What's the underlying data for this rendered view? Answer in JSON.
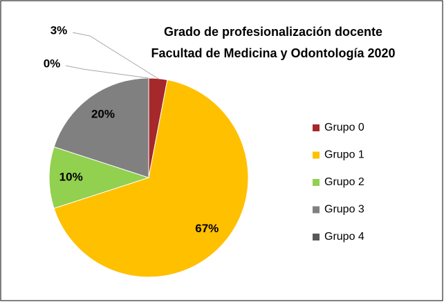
{
  "chart_data": {
    "type": "pie",
    "title": [
      "Grado de profesionalización docente",
      "Facultad de Medicina y Odontología  2020"
    ],
    "categories": [
      "Grupo 0",
      "Grupo 1",
      "Grupo 2",
      "Grupo 3",
      "Grupo 4"
    ],
    "values": [
      3,
      67,
      10,
      20,
      0
    ],
    "value_labels": [
      "3%",
      "67%",
      "10%",
      "20%",
      "0%"
    ],
    "colors": [
      "#a5282a",
      "#ffc000",
      "#92d050",
      "#808080",
      "#595959"
    ],
    "legend": "right"
  }
}
